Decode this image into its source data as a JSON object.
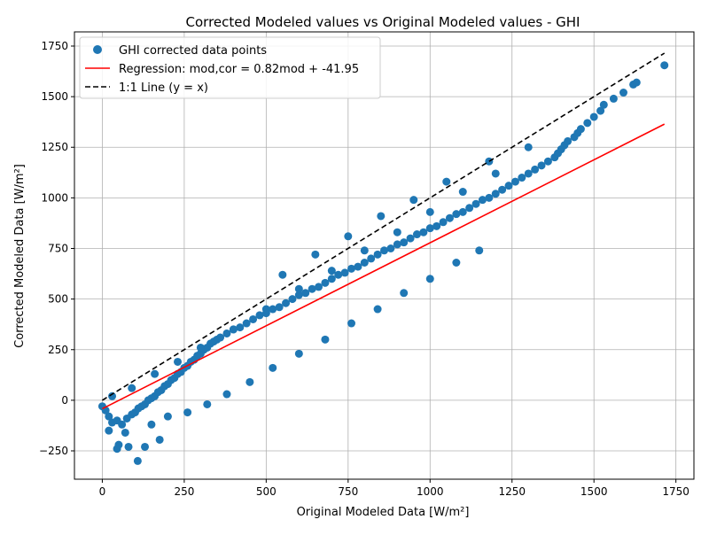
{
  "chart_data": {
    "type": "scatter",
    "title": "Corrected Modeled values vs Original Modeled values - GHI",
    "xlabel": "Original Modeled Data [W/m²]",
    "ylabel": "Corrected Modeled Data [W/m²]",
    "xlim": [
      -85,
      1805
    ],
    "ylim": [
      -390,
      1820
    ],
    "xticks": [
      0,
      250,
      500,
      750,
      1000,
      1250,
      1500,
      1750
    ],
    "yticks": [
      -250,
      0,
      250,
      500,
      750,
      1000,
      1250,
      1500,
      1750
    ],
    "xtick_labels": [
      "0",
      "250",
      "500",
      "750",
      "1000",
      "1250",
      "1500",
      "1750"
    ],
    "ytick_labels": [
      "−250",
      "0",
      "250",
      "500",
      "750",
      "1000",
      "1250",
      "1500",
      "1750"
    ],
    "grid": true,
    "legend_position": "top-left",
    "series": [
      {
        "name": "GHI corrected data points",
        "kind": "scatter",
        "color": "#1f77b4",
        "approximate": true,
        "x": [
          0,
          10,
          20,
          30,
          45,
          60,
          75,
          90,
          100,
          110,
          120,
          130,
          140,
          150,
          160,
          170,
          180,
          190,
          200,
          210,
          220,
          230,
          240,
          250,
          260,
          270,
          280,
          290,
          300,
          310,
          320,
          330,
          340,
          350,
          360,
          380,
          400,
          420,
          440,
          460,
          480,
          500,
          520,
          540,
          560,
          580,
          600,
          620,
          640,
          660,
          680,
          700,
          720,
          740,
          760,
          780,
          800,
          820,
          840,
          860,
          880,
          900,
          920,
          940,
          960,
          980,
          1000,
          1020,
          1040,
          1060,
          1080,
          1100,
          1120,
          1140,
          1160,
          1180,
          1200,
          1220,
          1240,
          1260,
          1280,
          1300,
          1320,
          1340,
          1360,
          1380,
          1390,
          1400,
          1410,
          1420,
          1440,
          1450,
          1460,
          1480,
          1500,
          1520,
          1530,
          1560,
          1590,
          1620,
          1630,
          1715,
          50,
          45,
          80,
          108,
          130,
          175,
          20,
          70,
          150,
          200,
          260,
          320,
          380,
          450,
          520,
          600,
          680,
          760,
          840,
          920,
          1000,
          1080,
          1150,
          30,
          90,
          160,
          230,
          300,
          400,
          500,
          600,
          700,
          800,
          900,
          1000,
          1100,
          1200,
          550,
          650,
          750,
          850,
          950,
          1050,
          1180,
          1300
        ],
        "y": [
          -30,
          -50,
          -80,
          -110,
          -100,
          -120,
          -90,
          -70,
          -60,
          -40,
          -30,
          -20,
          0,
          10,
          20,
          40,
          50,
          70,
          80,
          100,
          110,
          130,
          140,
          160,
          170,
          190,
          200,
          220,
          230,
          250,
          260,
          280,
          290,
          300,
          310,
          330,
          350,
          360,
          380,
          400,
          420,
          430,
          450,
          460,
          480,
          500,
          520,
          530,
          550,
          560,
          580,
          600,
          620,
          630,
          650,
          660,
          680,
          700,
          720,
          740,
          750,
          770,
          780,
          800,
          820,
          830,
          850,
          860,
          880,
          900,
          920,
          930,
          950,
          970,
          990,
          1000,
          1020,
          1040,
          1060,
          1080,
          1100,
          1120,
          1140,
          1160,
          1180,
          1200,
          1220,
          1240,
          1260,
          1280,
          1300,
          1320,
          1340,
          1370,
          1400,
          1430,
          1460,
          1490,
          1520,
          1560,
          1570,
          1655,
          -220,
          -240,
          -230,
          -300,
          -230,
          -195,
          -150,
          -160,
          -120,
          -80,
          -60,
          -20,
          30,
          90,
          160,
          230,
          300,
          380,
          450,
          530,
          600,
          680,
          740,
          20,
          60,
          130,
          190,
          260,
          350,
          450,
          550,
          640,
          740,
          830,
          930,
          1030,
          1120,
          620,
          720,
          810,
          910,
          990,
          1080,
          1180,
          1250
        ]
      },
      {
        "name": "Regression: mod,cor = 0.82mod + -41.95",
        "kind": "line",
        "color": "#ff0000",
        "dashed": false,
        "slope": 0.82,
        "intercept": -41.95,
        "x": [
          0,
          1715
        ]
      },
      {
        "name": "1:1 Line (y = x)",
        "kind": "line",
        "color": "#000000",
        "dashed": true,
        "slope": 1,
        "intercept": 0,
        "x": [
          0,
          1715
        ]
      }
    ]
  }
}
